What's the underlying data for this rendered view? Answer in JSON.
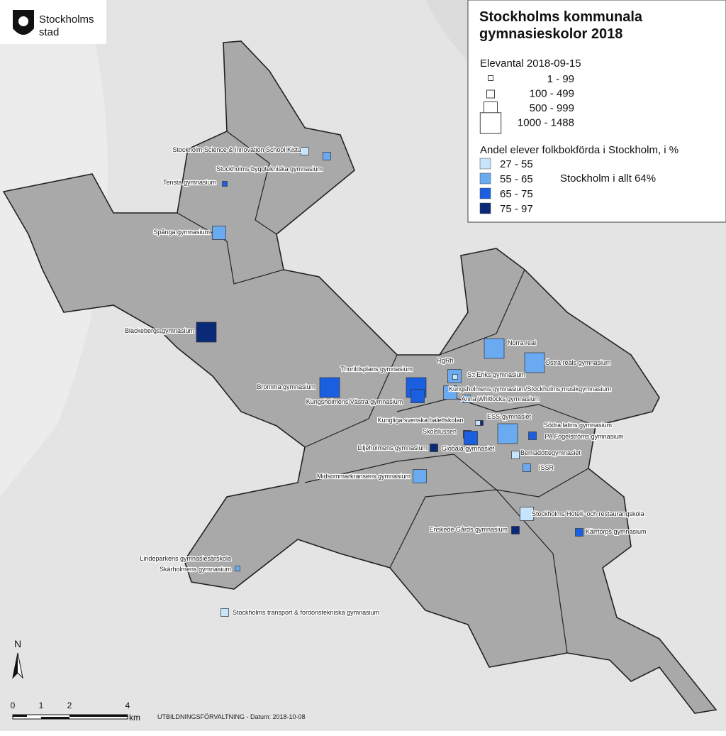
{
  "logo": {
    "line1": "Stockholms",
    "line2": "stad"
  },
  "legend": {
    "title": "Stockholms kommunala gymnasieskolor 2018",
    "size_title": "Elevantal 2018-09-15",
    "size_classes": [
      "1 -   99",
      "100 -  499",
      "500 -  999",
      "1000 - 1488"
    ],
    "share_title": "Andel elever folkbokförda i Stockholm, i %",
    "share_classes": [
      {
        "label": "27 - 55",
        "color": "#c6e4fb"
      },
      {
        "label": "55 - 65",
        "color": "#6aaaf0"
      },
      {
        "label": "65 - 75",
        "color": "#1a5fe0"
      },
      {
        "label": "75 - 97",
        "color": "#0a2a78"
      }
    ],
    "note": "Stockholm i allt 64%"
  },
  "schools": [
    {
      "name": "Stockholm Science & Innovation School Kista"
    },
    {
      "name": "Stockholms byggtekniska gymnasium"
    },
    {
      "name": "Tensta gymnasium"
    },
    {
      "name": "Spånga gymnasium"
    },
    {
      "name": "Blackebergs gymnasium"
    },
    {
      "name": "Bromma gymnasium"
    },
    {
      "name": "Thorildsplans gymnasium"
    },
    {
      "name": "Kungsholmens Västra gymnasium"
    },
    {
      "name": "RgRh"
    },
    {
      "name": "S:t Eriks gymnasium"
    },
    {
      "name": "Norra real"
    },
    {
      "name": "Östra reals gymnasium"
    },
    {
      "name": "Kungsholmens gymnasium/Stockholms musikgymnasium"
    },
    {
      "name": "Anna Whitlocks gymnasium"
    },
    {
      "name": "ESS-gymnasiet"
    },
    {
      "name": "Kungliga svenska balettskolan"
    },
    {
      "name": "Skolslussen"
    },
    {
      "name": "Södra latins gymnasium"
    },
    {
      "name": "PA Fogelströms gymnasium"
    },
    {
      "name": "Globala gymnasiet"
    },
    {
      "name": "Liljeholmens gymnasium"
    },
    {
      "name": "Bernadottegymnasiet"
    },
    {
      "name": "ISSR"
    },
    {
      "name": "Midsommarkransens gymnasium"
    },
    {
      "name": "Stockholms Hotell- och restaurangskola"
    },
    {
      "name": "Enskede Gårds gymnasium"
    },
    {
      "name": "Kärrtorps gymnasium"
    },
    {
      "name": "Lindeparkens gymnasiesärskola"
    },
    {
      "name": "Skärholmens gymnasium"
    },
    {
      "name": "Stockholms transport & fordonstekniska gymnasium"
    }
  ],
  "north": "N",
  "scale": {
    "labels": [
      "0",
      "1",
      "2",
      "4"
    ],
    "unit": "km"
  },
  "footer": "UTBILDNINGSFÖRVALTNING - Datum: 2018-10-08"
}
